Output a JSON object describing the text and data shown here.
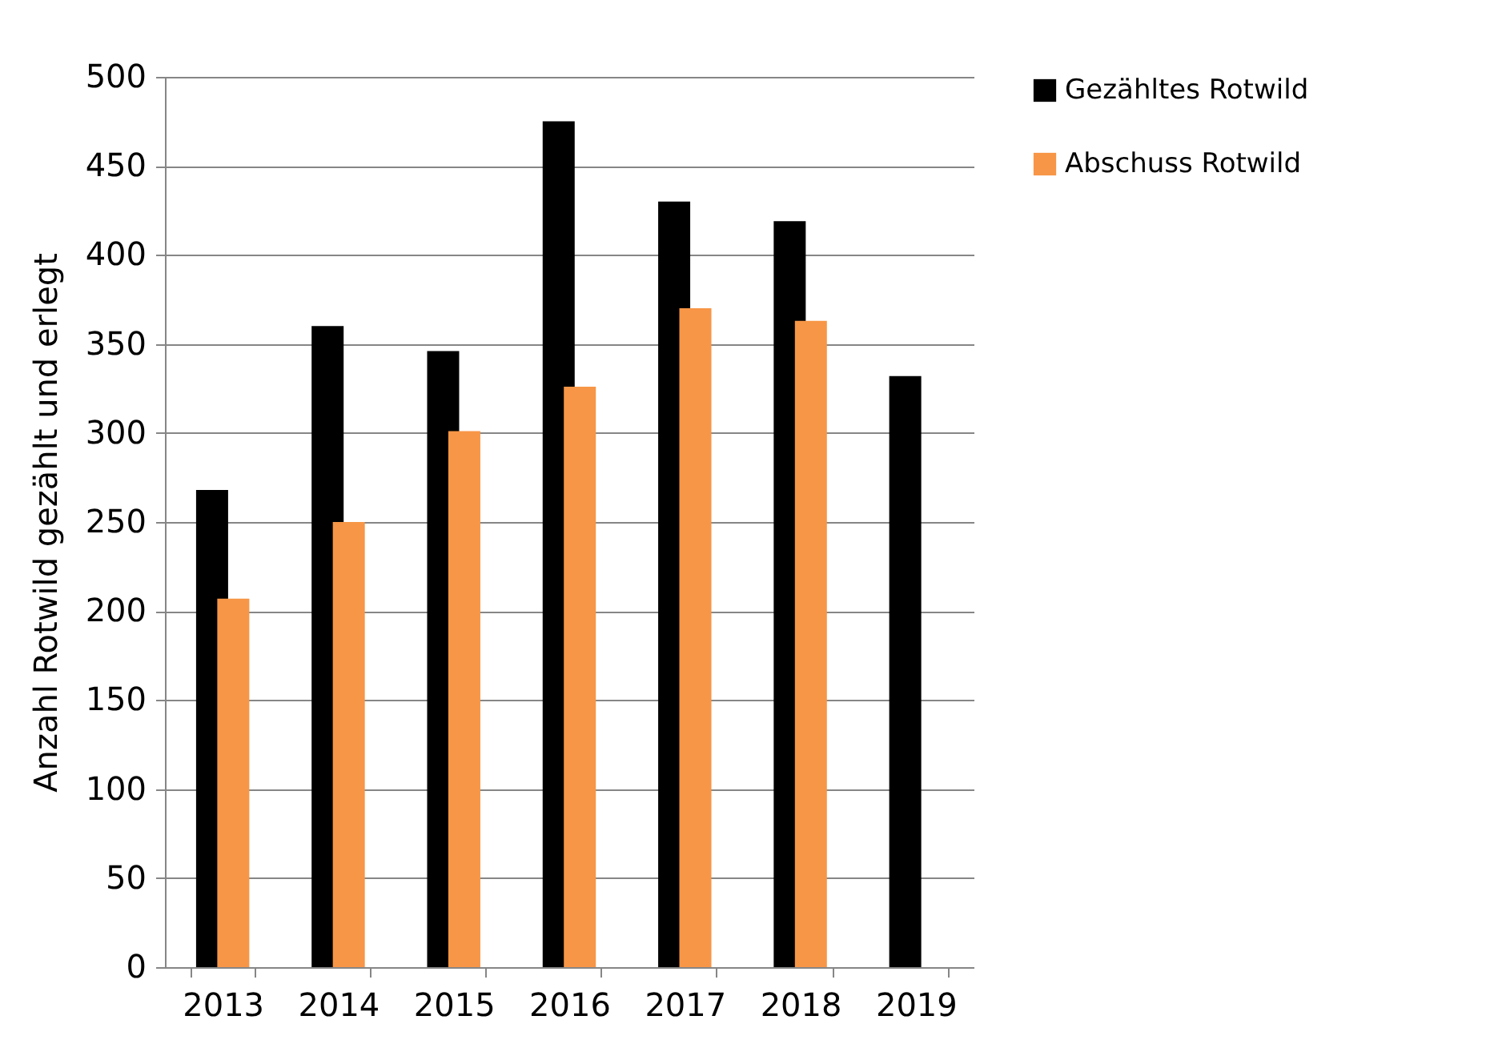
{
  "chart_data": {
    "type": "bar",
    "ylabel": "Anzahl Rotwild gezählt und erlegt",
    "categories": [
      "2013",
      "2014",
      "2015",
      "2016",
      "2017",
      "2018",
      "2019"
    ],
    "series": [
      {
        "name": "Gezähltes Rotwild",
        "color": "#000000",
        "values": [
          268,
          360,
          346,
          475,
          430,
          419,
          332
        ]
      },
      {
        "name": "Abschuss Rotwild",
        "color": "#f79646",
        "values": [
          207,
          250,
          301,
          326,
          370,
          363,
          null
        ]
      }
    ],
    "ylim": [
      0,
      500
    ],
    "yticks": [
      0,
      50,
      100,
      150,
      200,
      250,
      300,
      350,
      400,
      450,
      500
    ],
    "grid": "y",
    "legend": "right"
  }
}
